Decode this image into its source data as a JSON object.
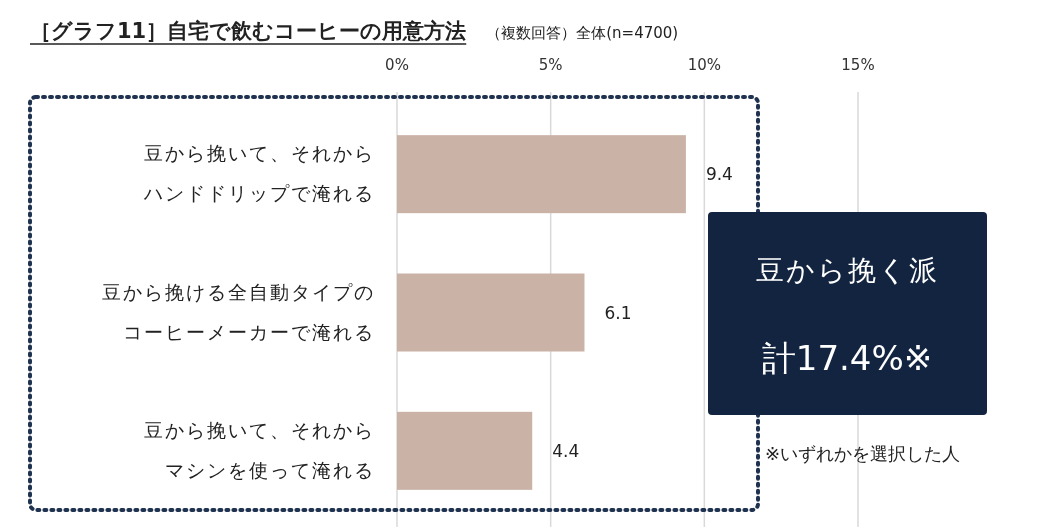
{
  "chart_data": {
    "type": "bar",
    "orientation": "horizontal",
    "title": "［グラフ11］自宅で飲むコーヒーの用意方法",
    "subtitle": "（複数回答）全体(n=4700)",
    "categories": [
      "豆から挽いて、それからハンドドリップで淹れる",
      "豆から挽ける全自動タイプのコーヒーメーカーで淹れる",
      "豆から挽いて、それからマシンを使って淹れる"
    ],
    "values": [
      9.4,
      6.1,
      4.4
    ],
    "color": "#cbb2a6",
    "xlim": [
      0,
      15
    ],
    "xticks": [
      {
        "value": 0,
        "label": "0%"
      },
      {
        "value": 5,
        "label": "5%"
      },
      {
        "value": 10,
        "label": "10%"
      },
      {
        "value": 15,
        "label": "15%"
      }
    ],
    "grid": "x",
    "data_labels": true,
    "annotations": [
      "豆から挽く派",
      "計17.4%※",
      "※いずれかを選択した人"
    ]
  }
}
